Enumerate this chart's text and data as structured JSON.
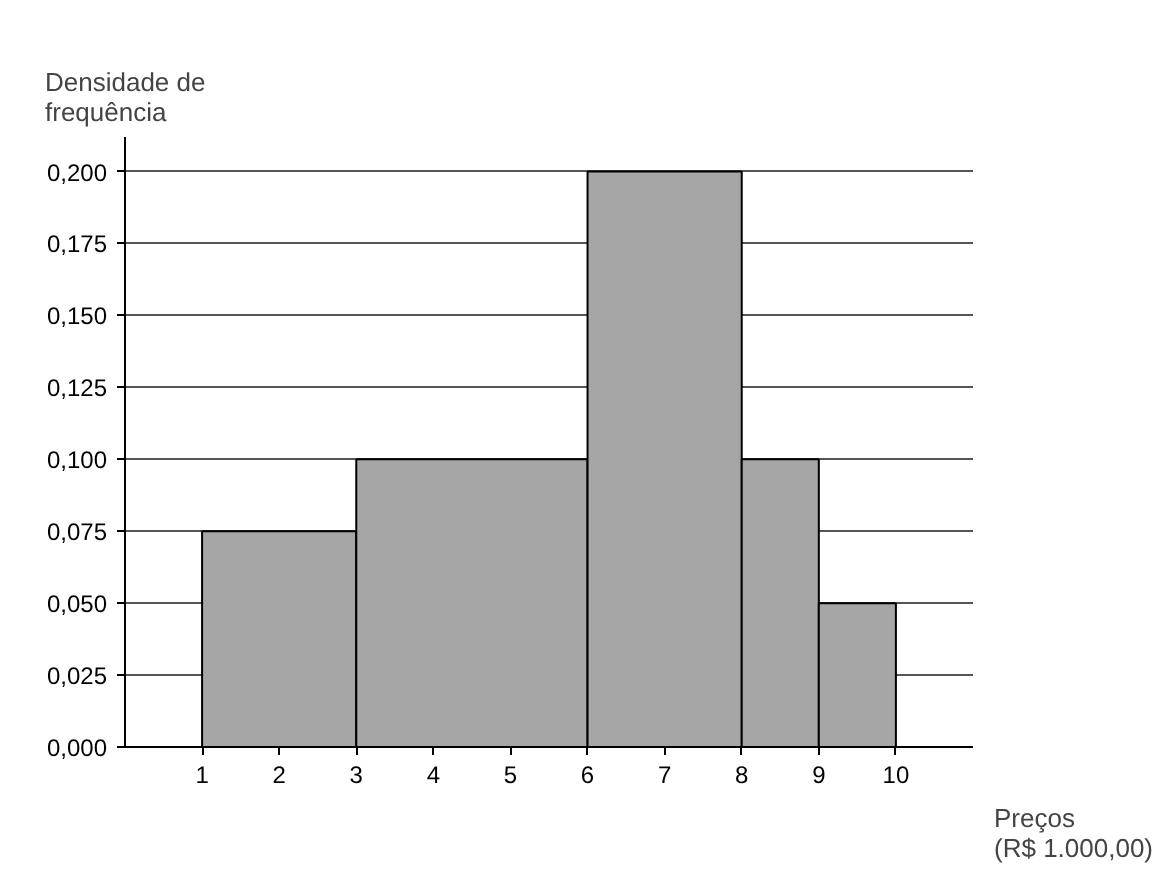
{
  "chart_data": {
    "type": "histogram",
    "xlabel": "Preços\n(R$ 1.000,00)",
    "ylabel": "Densidade de\nfrequência",
    "bins": [
      1,
      3,
      6,
      8,
      9,
      10
    ],
    "values": [
      0.075,
      0.1,
      0.2,
      0.1,
      0.05
    ],
    "color": "#a6a6a6",
    "xlim": [
      0,
      11
    ],
    "xticks": [
      1,
      2,
      3,
      4,
      5,
      6,
      7,
      8,
      9,
      10
    ],
    "ylim": [
      0,
      0.212
    ],
    "yticks": [
      {
        "value": 0,
        "label": "0,000"
      },
      {
        "value": 0.025,
        "label": "0,025"
      },
      {
        "value": 0.05,
        "label": "0,050"
      },
      {
        "value": 0.075,
        "label": "0,075"
      },
      {
        "value": 0.1,
        "label": "0,100"
      },
      {
        "value": 0.125,
        "label": "0,125"
      },
      {
        "value": 0.15,
        "label": "0,150"
      },
      {
        "value": 0.175,
        "label": "0,175"
      },
      {
        "value": 0.2,
        "label": "0,200"
      }
    ],
    "grid": "y"
  }
}
